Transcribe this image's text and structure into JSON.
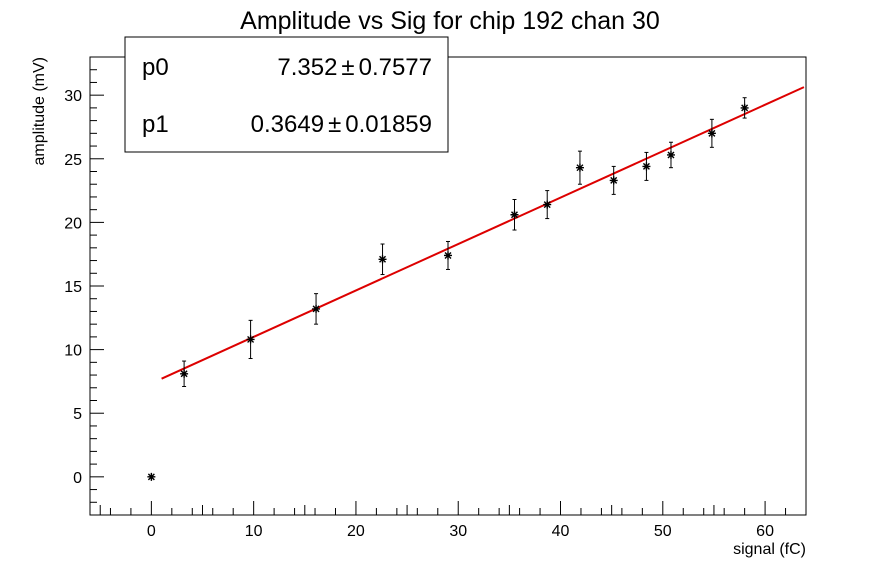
{
  "chart_data": {
    "type": "scatter",
    "title": "Amplitude vs Sig for chip 192 chan 30",
    "xlabel": "signal (fC)",
    "ylabel": "amplitude (mV)",
    "xlim": [
      -6,
      64
    ],
    "ylim": [
      -3,
      33
    ],
    "x_ticks": [
      0,
      10,
      20,
      30,
      40,
      50,
      60
    ],
    "y_ticks": [
      0,
      5,
      10,
      15,
      20,
      25,
      30
    ],
    "grid": false,
    "series": [
      {
        "marker": "asterisk",
        "color": "#000000",
        "points": [
          {
            "x": 0,
            "y": 0,
            "err": 0
          },
          {
            "x": 3.2,
            "y": 8.1,
            "err": 1.0
          },
          {
            "x": 9.7,
            "y": 10.8,
            "err": 1.5
          },
          {
            "x": 16.1,
            "y": 13.2,
            "err": 1.2
          },
          {
            "x": 22.6,
            "y": 17.1,
            "err": 1.2
          },
          {
            "x": 29.0,
            "y": 17.4,
            "err": 1.1
          },
          {
            "x": 35.5,
            "y": 20.6,
            "err": 1.2
          },
          {
            "x": 38.7,
            "y": 21.4,
            "err": 1.1
          },
          {
            "x": 41.9,
            "y": 24.3,
            "err": 1.3
          },
          {
            "x": 45.2,
            "y": 23.3,
            "err": 1.1
          },
          {
            "x": 48.4,
            "y": 24.4,
            "err": 1.1
          },
          {
            "x": 50.8,
            "y": 25.3,
            "err": 1.0
          },
          {
            "x": 54.8,
            "y": 27.0,
            "err": 1.1
          },
          {
            "x": 58.0,
            "y": 29.0,
            "err": 0.8
          }
        ]
      }
    ],
    "fit": {
      "type": "linear",
      "color": "#dd0000",
      "x_range": [
        1,
        63.8
      ],
      "p0": 7.352,
      "p1": 0.3649
    },
    "stats_box": {
      "rows": [
        {
          "name": "p0",
          "value": "7.352",
          "pm": "±",
          "error": "0.7577"
        },
        {
          "name": "p1",
          "value": "0.3649",
          "pm": "±",
          "error": "0.01859"
        }
      ]
    }
  }
}
